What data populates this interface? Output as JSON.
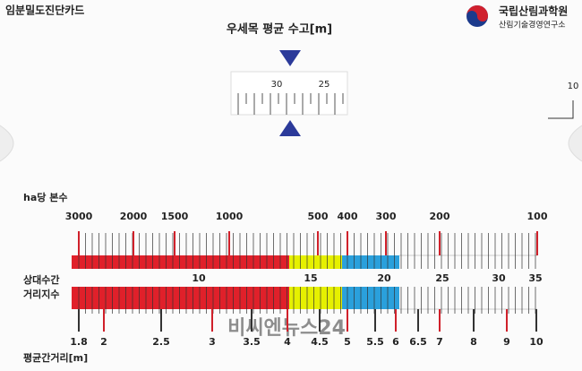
{
  "header": {
    "card_title": "임분밀도진단카드",
    "org_name": "국립산림과학원",
    "org_sub": "산림기술경영연구소"
  },
  "height_scale": {
    "title": "우세목 평균 수고[m]",
    "labels": [
      "30",
      "25"
    ],
    "side_label": "10"
  },
  "trees_per_ha": {
    "title": "ha당 본수",
    "labels": [
      "3000",
      "2000",
      "1500",
      "1000",
      "500",
      "400",
      "300",
      "200",
      "100"
    ]
  },
  "relative_spacing": {
    "title_line1": "상대수간",
    "title_line2": "거리지수",
    "labels": [
      "10",
      "15",
      "20",
      "25",
      "30",
      "35"
    ]
  },
  "mean_spacing": {
    "title": "평균간거리[m]",
    "labels": [
      "1.8",
      "2",
      "2.5",
      "3",
      "3.5",
      "4",
      "4.5",
      "5",
      "5.5",
      "6",
      "6.5",
      "7",
      "8",
      "9",
      "10"
    ]
  },
  "watermark": "비씨엔뉴스24"
}
